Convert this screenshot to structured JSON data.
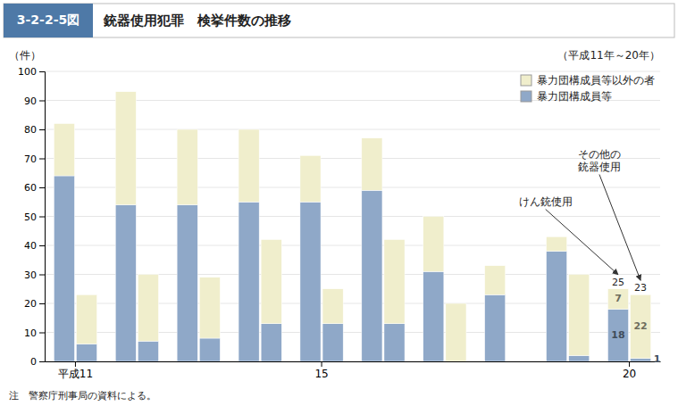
{
  "chart_data": {
    "type": "bar",
    "title": [
      "3-2-2-5図",
      "銃器使用犯罪　検挙件数の推移"
    ],
    "subtitle": "（平成11年～20年）",
    "ylabel": "（件）",
    "note": "注　警察庁刑事局の資料による。",
    "categories": [
      "平成11",
      null,
      null,
      null,
      null,
      null,
      null,
      null,
      "15",
      null,
      null,
      null,
      null,
      null,
      null,
      null,
      null,
      null,
      "20",
      null
    ],
    "series": [
      {
        "name": "暴力団構成員等",
        "color": "#8fa8c8",
        "values": [
          64,
          6,
          54,
          7,
          54,
          8,
          55,
          13,
          55,
          13,
          59,
          13,
          31,
          0,
          23,
          0,
          38,
          2,
          18,
          1
        ],
        "value_labels": [
          null,
          null,
          null,
          null,
          null,
          null,
          null,
          null,
          null,
          null,
          null,
          null,
          null,
          null,
          null,
          null,
          null,
          null,
          "18",
          "1"
        ]
      },
      {
        "name": "暴力団構成員等以外の者",
        "color": "#f0eecc",
        "values": [
          18,
          17,
          39,
          23,
          26,
          21,
          25,
          29,
          16,
          12,
          18,
          29,
          19,
          20,
          10,
          0,
          5,
          28,
          7,
          22
        ],
        "value_labels": [
          null,
          null,
          null,
          null,
          null,
          null,
          null,
          null,
          null,
          null,
          null,
          null,
          null,
          null,
          null,
          null,
          null,
          null,
          "7",
          "22"
        ]
      }
    ],
    "totals": [
      null,
      null,
      null,
      null,
      null,
      null,
      null,
      null,
      null,
      null,
      null,
      null,
      null,
      null,
      null,
      null,
      null,
      null,
      25,
      23
    ],
    "stacked": true,
    "ylim": [
      0,
      100
    ],
    "yticks": [
      0,
      10,
      20,
      30,
      40,
      50,
      60,
      70,
      80,
      90,
      100
    ],
    "grid": true,
    "legend": "top-right",
    "annotations": [
      {
        "text": "けん銃使用",
        "index": 18
      },
      {
        "text": [
          "その他の",
          "銃器使用"
        ],
        "index": 19
      }
    ]
  }
}
